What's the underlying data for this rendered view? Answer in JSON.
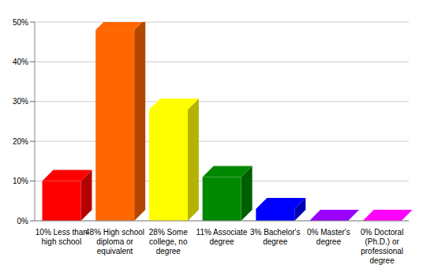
{
  "chart_data": {
    "type": "bar",
    "categories": [
      "10% Less than high school",
      "48% High school diploma or equivalent",
      "28% Some college, no degree",
      "11% Associate degree",
      "3% Bachelor's degree",
      "0% Master's degree",
      "0% Doctoral (Ph.D.) or professional degree"
    ],
    "values": [
      10,
      48,
      28,
      11,
      3,
      0,
      0
    ],
    "colors": [
      "#ff0000",
      "#ff6600",
      "#ffff00",
      "#008800",
      "#0000ff",
      "#9900ff",
      "#ff00ff"
    ],
    "ylim": [
      0,
      50
    ],
    "yticks": [
      {
        "value": 0,
        "label": "0%"
      },
      {
        "value": 10,
        "label": "10%"
      },
      {
        "value": 20,
        "label": "20%"
      },
      {
        "value": 30,
        "label": "30%"
      },
      {
        "value": 40,
        "label": "40%"
      },
      {
        "value": 50,
        "label": "50%"
      }
    ],
    "grid": true
  }
}
